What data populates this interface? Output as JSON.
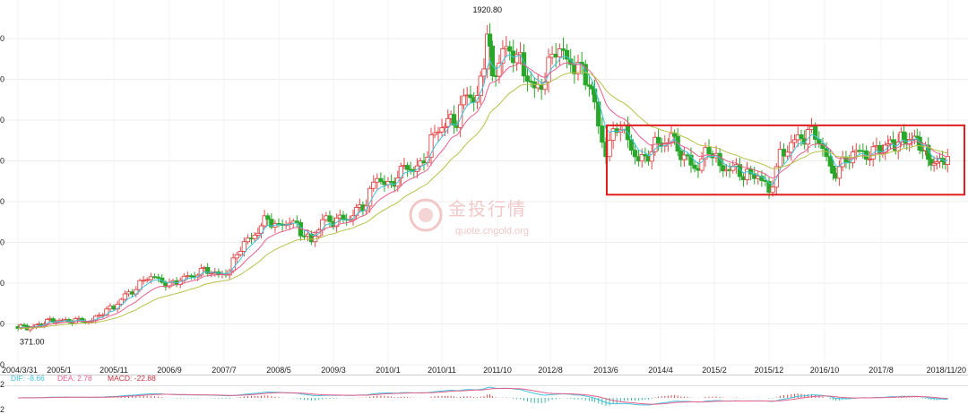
{
  "chart_data": {
    "type": "candlestick",
    "title": "",
    "xlabel": "",
    "ylabel": "",
    "x_ticks": [
      "2004/3/31",
      "2005/1",
      "2005/11",
      "2006/9",
      "2007/7",
      "2008/5",
      "2009/3",
      "2010/1",
      "2010/11",
      "2011/10",
      "2012/8",
      "2013/6",
      "2014/4",
      "2015/2",
      "2015/12",
      "2016/10",
      "2017/8",
      "2018/11/20"
    ],
    "y_left_tick_fragments": [
      "0",
      "0",
      "0",
      "0",
      "0",
      "0",
      "0",
      "0",
      "0"
    ],
    "y_range": [
      300,
      2020
    ],
    "annotations": {
      "high": "1920.80",
      "low": "371.00"
    },
    "moving_averages": [
      {
        "name": "MA-short",
        "color": "#3fc3de"
      },
      {
        "name": "MA-mid",
        "color": "#e8608c"
      },
      {
        "name": "MA-long",
        "color": "#b8c24a"
      }
    ],
    "candle_colors": {
      "up": "#e04848",
      "down": "#2aa62a"
    },
    "highlight_box": {
      "from": "2013/6",
      "to": "2018/11/20",
      "low": 1045,
      "high": 1385,
      "color": "#e02020"
    },
    "close_series": [
      {
        "x": "2004-04",
        "y": 398
      },
      {
        "x": "2004-06",
        "y": 392
      },
      {
        "x": "2004-08",
        "y": 402
      },
      {
        "x": "2004-11",
        "y": 430
      },
      {
        "x": "2005-01",
        "y": 424
      },
      {
        "x": "2005-04",
        "y": 428
      },
      {
        "x": "2005-07",
        "y": 425
      },
      {
        "x": "2005-09",
        "y": 468
      },
      {
        "x": "2005-11",
        "y": 495
      },
      {
        "x": "2006-01",
        "y": 552
      },
      {
        "x": "2006-03",
        "y": 582
      },
      {
        "x": "2006-05",
        "y": 645
      },
      {
        "x": "2006-07",
        "y": 632
      },
      {
        "x": "2006-09",
        "y": 600
      },
      {
        "x": "2006-11",
        "y": 628
      },
      {
        "x": "2007-01",
        "y": 648
      },
      {
        "x": "2007-04",
        "y": 678
      },
      {
        "x": "2007-06",
        "y": 650
      },
      {
        "x": "2007-08",
        "y": 672
      },
      {
        "x": "2007-10",
        "y": 790
      },
      {
        "x": "2007-12",
        "y": 835
      },
      {
        "x": "2008-03",
        "y": 930
      },
      {
        "x": "2008-05",
        "y": 885
      },
      {
        "x": "2008-07",
        "y": 915
      },
      {
        "x": "2008-09",
        "y": 870
      },
      {
        "x": "2008-11",
        "y": 815
      },
      {
        "x": "2009-01",
        "y": 918
      },
      {
        "x": "2009-03",
        "y": 915
      },
      {
        "x": "2009-06",
        "y": 930
      },
      {
        "x": "2009-09",
        "y": 1005
      },
      {
        "x": "2009-11",
        "y": 1140
      },
      {
        "x": "2010-01",
        "y": 1085
      },
      {
        "x": "2010-04",
        "y": 1180
      },
      {
        "x": "2010-07",
        "y": 1180
      },
      {
        "x": "2010-09",
        "y": 1305
      },
      {
        "x": "2010-11",
        "y": 1385
      },
      {
        "x": "2011-02",
        "y": 1410
      },
      {
        "x": "2011-04",
        "y": 1555
      },
      {
        "x": "2011-06",
        "y": 1500
      },
      {
        "x": "2011-08",
        "y": 1825
      },
      {
        "x": "2011-09",
        "y": 1620
      },
      {
        "x": "2011-11",
        "y": 1745
      },
      {
        "x": "2012-01",
        "y": 1740
      },
      {
        "x": "2012-03",
        "y": 1665
      },
      {
        "x": "2012-05",
        "y": 1555
      },
      {
        "x": "2012-07",
        "y": 1610
      },
      {
        "x": "2012-09",
        "y": 1775
      },
      {
        "x": "2012-11",
        "y": 1710
      },
      {
        "x": "2013-01",
        "y": 1665
      },
      {
        "x": "2013-03",
        "y": 1595
      },
      {
        "x": "2013-04",
        "y": 1475
      },
      {
        "x": "2013-06",
        "y": 1235
      },
      {
        "x": "2013-08",
        "y": 1395
      },
      {
        "x": "2013-10",
        "y": 1325
      },
      {
        "x": "2013-12",
        "y": 1200
      },
      {
        "x": "2014-03",
        "y": 1285
      },
      {
        "x": "2014-06",
        "y": 1325
      },
      {
        "x": "2014-09",
        "y": 1210
      },
      {
        "x": "2014-11",
        "y": 1170
      },
      {
        "x": "2015-01",
        "y": 1280
      },
      {
        "x": "2015-03",
        "y": 1185
      },
      {
        "x": "2015-06",
        "y": 1170
      },
      {
        "x": "2015-08",
        "y": 1135
      },
      {
        "x": "2015-10",
        "y": 1140
      },
      {
        "x": "2015-12",
        "y": 1060
      },
      {
        "x": "2016-02",
        "y": 1235
      },
      {
        "x": "2016-04",
        "y": 1290
      },
      {
        "x": "2016-07",
        "y": 1350
      },
      {
        "x": "2016-09",
        "y": 1315
      },
      {
        "x": "2016-11",
        "y": 1175
      },
      {
        "x": "2016-12",
        "y": 1150
      },
      {
        "x": "2017-03",
        "y": 1250
      },
      {
        "x": "2017-06",
        "y": 1240
      },
      {
        "x": "2017-09",
        "y": 1280
      },
      {
        "x": "2017-12",
        "y": 1305
      },
      {
        "x": "2018-02",
        "y": 1320
      },
      {
        "x": "2018-05",
        "y": 1300
      },
      {
        "x": "2018-07",
        "y": 1225
      },
      {
        "x": "2018-09",
        "y": 1195
      },
      {
        "x": "2018-11",
        "y": 1222
      }
    ],
    "macd": {
      "dif_label": "DIF: -8.66",
      "dea_label": "DEA: 2.78",
      "macd_label": "MACD: -22.88",
      "dif_color": "#3fc3de",
      "dea_color": "#e8608c",
      "macd_color": "#c83040",
      "y_ticks": [
        "2",
        "2"
      ]
    },
    "grid": true,
    "legend": "none"
  },
  "watermark": {
    "brand_cn": "金投行情",
    "brand_url": "quote.cngold.org",
    "color": "#f0c8c8"
  }
}
